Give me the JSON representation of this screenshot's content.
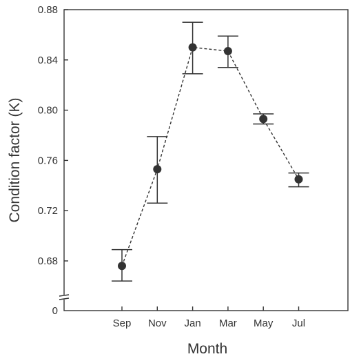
{
  "chart_data": {
    "type": "scatter",
    "xlabel": "Month",
    "ylabel": "Condition factor (K)",
    "categories": [
      "Sep",
      "Nov",
      "Jan",
      "Mar",
      "May",
      "Jul"
    ],
    "values": [
      0.676,
      0.753,
      0.85,
      0.847,
      0.793,
      0.745
    ],
    "error_upper": [
      0.689,
      0.779,
      0.87,
      0.859,
      0.797,
      0.75
    ],
    "error_lower": [
      0.664,
      0.726,
      0.829,
      0.834,
      0.789,
      0.739
    ],
    "ylim": [
      0.64,
      0.88
    ],
    "yticks": [
      0.68,
      0.72,
      0.76,
      0.8,
      0.84,
      0.88
    ],
    "ytick_labels": [
      "0.68",
      "0.72",
      "0.76",
      "0.80",
      "0.84",
      "0.88"
    ],
    "y_origin_label": "0",
    "axis_break": true,
    "line_style": "dashed",
    "grid": false,
    "legend": "none",
    "colors": {
      "marker": "#333333",
      "axis": "#333333"
    }
  }
}
